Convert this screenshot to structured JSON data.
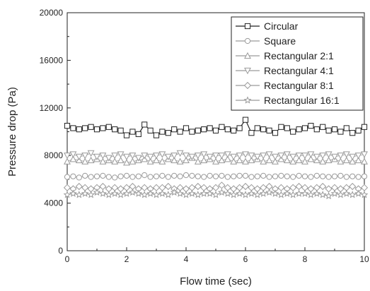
{
  "chart_data": {
    "type": "scatter",
    "title": "",
    "xlabel": "Flow time (sec)",
    "ylabel": "Pressure drop (Pa)",
    "xlim": [
      0,
      10
    ],
    "ylim": [
      0,
      20000
    ],
    "xticks": [
      0,
      2,
      4,
      6,
      8,
      10
    ],
    "yticks": [
      0,
      4000,
      8000,
      12000,
      16000,
      20000
    ],
    "grid": false,
    "legend_position": "top-right",
    "x": [
      0,
      0.2,
      0.4,
      0.6,
      0.8,
      1,
      1.2,
      1.4,
      1.6,
      1.8,
      2,
      2.2,
      2.4,
      2.6,
      2.8,
      3,
      3.2,
      3.4,
      3.6,
      3.8,
      4,
      4.2,
      4.4,
      4.6,
      4.8,
      5,
      5.2,
      5.4,
      5.6,
      5.8,
      6,
      6.2,
      6.4,
      6.6,
      6.8,
      7,
      7.2,
      7.4,
      7.6,
      7.8,
      8,
      8.2,
      8.4,
      8.6,
      8.8,
      9,
      9.2,
      9.4,
      9.6,
      9.8,
      10
    ],
    "series": [
      {
        "name": "Circular",
        "marker": "square",
        "connected": true,
        "values": [
          10500,
          10300,
          10200,
          10300,
          10400,
          10200,
          10300,
          10400,
          10200,
          10100,
          9700,
          10000,
          9800,
          10600,
          10100,
          9700,
          10000,
          9900,
          10200,
          10000,
          10300,
          10000,
          10100,
          10200,
          10300,
          10100,
          10400,
          10200,
          10100,
          10300,
          11000,
          9900,
          10300,
          10200,
          10100,
          9900,
          10400,
          10300,
          10000,
          10200,
          10300,
          10500,
          10200,
          10400,
          10100,
          10200,
          10000,
          10300,
          9900,
          10100,
          10400
        ]
      },
      {
        "name": "Square",
        "marker": "circle",
        "connected": false,
        "values": [
          6200,
          6250,
          6150,
          6300,
          6200,
          6250,
          6300,
          6200,
          6150,
          6250,
          6300,
          6200,
          6250,
          6350,
          6200,
          6250,
          6300,
          6200,
          6300,
          6250,
          6350,
          6300,
          6250,
          6200,
          6300,
          6250,
          6300,
          6200,
          6250,
          6300,
          6300,
          6200,
          6250,
          6300,
          6200,
          6250,
          6300,
          6250,
          6200,
          6300,
          6250,
          6200,
          6300,
          6250,
          6200,
          6250,
          6300,
          6200,
          6250,
          6200,
          6250
        ]
      },
      {
        "name": "Rectangular 2:1",
        "marker": "triangle-up",
        "connected": false,
        "values": [
          7500,
          7700,
          7600,
          7500,
          7600,
          7700,
          7500,
          7600,
          7500,
          7600,
          7400,
          7500,
          7600,
          7700,
          7500,
          7600,
          7500,
          7700,
          7600,
          7500,
          7600,
          7800,
          7500,
          7600,
          7700,
          7500,
          7600,
          7700,
          7500,
          7600,
          7500,
          7600,
          7700,
          7500,
          7600,
          7500,
          7700,
          7600,
          7500,
          7600,
          7500,
          7700,
          7600,
          7500,
          7600,
          7700,
          7500,
          7600,
          7500,
          7600,
          7500
        ]
      },
      {
        "name": "Rectangular 4:1",
        "marker": "triangle-down",
        "connected": false,
        "values": [
          8000,
          8100,
          7900,
          8000,
          8200,
          7900,
          8000,
          7800,
          8000,
          8100,
          7900,
          8000,
          7800,
          8000,
          7900,
          8000,
          8100,
          7900,
          8000,
          8200,
          8000,
          7900,
          8000,
          8100,
          7900,
          8000,
          8000,
          8100,
          7900,
          8000,
          8100,
          8000,
          7900,
          8000,
          8100,
          7900,
          8000,
          8100,
          7900,
          8000,
          8000,
          8100,
          7900,
          8000,
          8100,
          7900,
          8000,
          8100,
          7900,
          8000,
          8100
        ]
      },
      {
        "name": "Rectangular 8:1",
        "marker": "diamond",
        "connected": false,
        "values": [
          5300,
          5200,
          5400,
          5300,
          5200,
          5300,
          5400,
          5200,
          5300,
          5200,
          5300,
          5400,
          5200,
          5300,
          5200,
          5300,
          5300,
          5400,
          5200,
          5300,
          5200,
          5300,
          5400,
          5300,
          5200,
          5300,
          5500,
          5300,
          5200,
          5300,
          5400,
          5300,
          5200,
          5300,
          5400,
          5200,
          5300,
          5200,
          5300,
          5400,
          5300,
          5200,
          5300,
          5400,
          5200,
          5300,
          5200,
          5300,
          5400,
          5200,
          5300
        ]
      },
      {
        "name": "Rectangular 16:1",
        "marker": "star",
        "connected": false,
        "values": [
          4700,
          4800,
          4700,
          4800,
          4700,
          4900,
          4800,
          4700,
          4800,
          4700,
          4800,
          4900,
          4800,
          4700,
          4800,
          4700,
          4800,
          4700,
          4900,
          4800,
          4700,
          4800,
          4700,
          4800,
          4800,
          4700,
          4900,
          4800,
          4700,
          4800,
          4700,
          4800,
          4700,
          4800,
          4900,
          4800,
          4700,
          4800,
          4700,
          4800,
          4800,
          4700,
          4800,
          4700,
          4600,
          4800,
          4700,
          4800,
          4700,
          4800,
          4700
        ]
      }
    ]
  }
}
